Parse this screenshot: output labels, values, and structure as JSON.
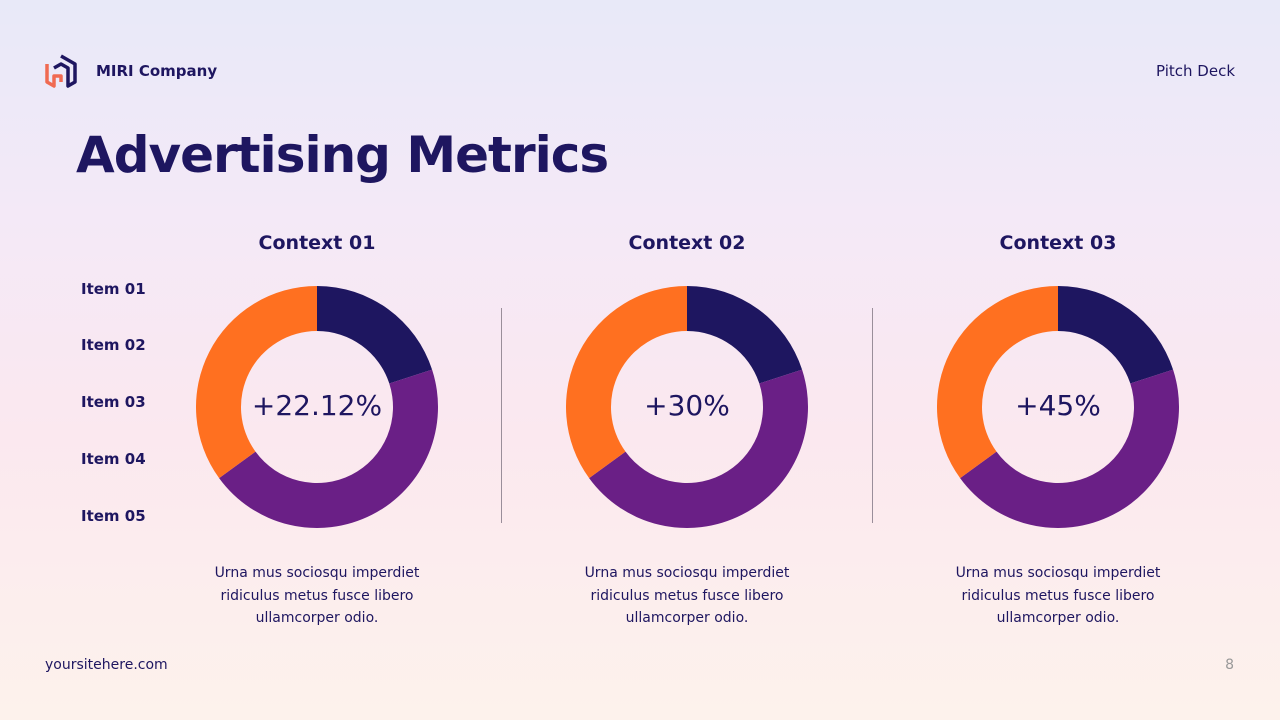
{
  "header": {
    "company": "MIRI Company",
    "deck_label": "Pitch Deck",
    "logo_icon": "hexagon-hu-logo"
  },
  "title": "Advertising Metrics",
  "legend": {
    "items": [
      "Item 01",
      "Item 02",
      "Item 03",
      "Item 04",
      "Item 05"
    ]
  },
  "contexts": [
    {
      "label": "Context 01",
      "value": "+22.12%",
      "description": "Urna mus sociosqu imperdiet ridiculus metus fusce libero ullamcorper odio."
    },
    {
      "label": "Context 02",
      "value": "+30%",
      "description": "Urna mus sociosqu imperdiet ridiculus metus fusce libero ullamcorper odio."
    },
    {
      "label": "Context 03",
      "value": "+45%",
      "description": "Urna mus sociosqu imperdiet ridiculus metus fusce libero ullamcorper odio."
    }
  ],
  "colors": {
    "navy": "#1e1660",
    "purple": "#6a1f86",
    "orange": "#ff7020"
  },
  "chart_data": [
    {
      "type": "pie",
      "title": "Context 01",
      "center_label": "+22.12%",
      "values": [
        20,
        45,
        35
      ],
      "colors": [
        "#1e1660",
        "#6a1f86",
        "#ff7020"
      ]
    },
    {
      "type": "pie",
      "title": "Context 02",
      "center_label": "+30%",
      "values": [
        20,
        45,
        35
      ],
      "colors": [
        "#1e1660",
        "#6a1f86",
        "#ff7020"
      ]
    },
    {
      "type": "pie",
      "title": "Context 03",
      "center_label": "+45%",
      "values": [
        20,
        45,
        35
      ],
      "colors": [
        "#1e1660",
        "#6a1f86",
        "#ff7020"
      ]
    }
  ],
  "footer": {
    "website": "yoursitehere.com",
    "page_number": "8"
  }
}
